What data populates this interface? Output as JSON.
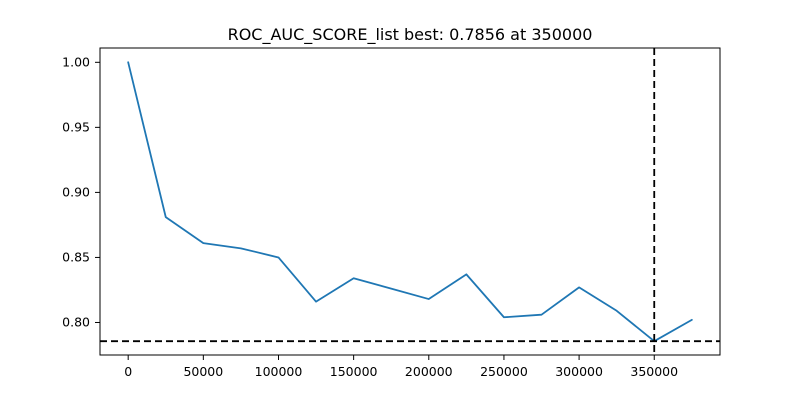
{
  "chart_data": {
    "type": "line",
    "title": "ROC_AUC_SCORE_list best: 0.7856 at 350000",
    "xlabel": "",
    "ylabel": "",
    "xlim": [
      -18750,
      393750
    ],
    "ylim": [
      0.775,
      1.011
    ],
    "x_ticks": [
      0,
      50000,
      100000,
      150000,
      200000,
      250000,
      300000,
      350000
    ],
    "y_ticks": [
      0.8,
      0.85,
      0.9,
      0.95,
      1.0
    ],
    "x_tick_labels": [
      "0",
      "50000",
      "100000",
      "150000",
      "200000",
      "250000",
      "300000",
      "350000"
    ],
    "y_tick_labels": [
      "0.80",
      "0.85",
      "0.90",
      "0.95",
      "1.00"
    ],
    "grid": false,
    "series": [
      {
        "color": "#1f77b4",
        "x": [
          0,
          25000,
          50000,
          75000,
          100000,
          125000,
          150000,
          175000,
          200000,
          225000,
          250000,
          275000,
          300000,
          325000,
          350000,
          375000
        ],
        "y": [
          1.0,
          0.881,
          0.861,
          0.857,
          0.85,
          0.816,
          0.834,
          0.826,
          0.818,
          0.837,
          0.804,
          0.806,
          0.827,
          0.809,
          0.7856,
          0.802
        ]
      }
    ],
    "reference_lines": {
      "vertical_x": 350000,
      "horizontal_y": 0.7856,
      "color": "#000000",
      "style": "dashed"
    }
  }
}
